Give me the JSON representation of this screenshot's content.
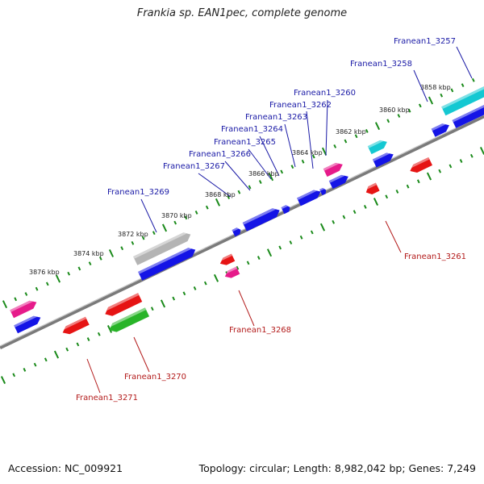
{
  "title": "Frankia sp. EAN1pec, complete genome",
  "footer": {
    "accession": "Accession: NC_009921",
    "summary": "Topology: circular; Length: 8,982,042 bp; Genes: 7,249"
  },
  "colors": {
    "backbone": "#808080",
    "ticks": "#1a8a1a",
    "forward_label": "#1a1aa6",
    "reverse_label": "#b31b1b",
    "blue": "#1414e6",
    "red": "#e61414",
    "magenta": "#e61a8a",
    "cyan": "#14c8d2",
    "grey": "#b4b4b4",
    "green": "#28b428"
  },
  "kbp_ticks": [
    {
      "label": "3858 kbp"
    },
    {
      "label": "3860 kbp"
    },
    {
      "label": "3862 kbp"
    },
    {
      "label": "3864 kbp"
    },
    {
      "label": "3866 kbp"
    },
    {
      "label": "3868 kbp"
    },
    {
      "label": "3870 kbp"
    },
    {
      "label": "3872 kbp"
    },
    {
      "label": "3874 kbp"
    },
    {
      "label": "3876 kbp"
    }
  ],
  "gene_labels": [
    {
      "text": "Franean1_3257",
      "strand": "forward"
    },
    {
      "text": "Franean1_3258",
      "strand": "forward"
    },
    {
      "text": "Franean1_3260",
      "strand": "forward"
    },
    {
      "text": "Franean1_3262",
      "strand": "forward"
    },
    {
      "text": "Franean1_3263",
      "strand": "forward"
    },
    {
      "text": "Franean1_3264",
      "strand": "forward"
    },
    {
      "text": "Franean1_3265",
      "strand": "forward"
    },
    {
      "text": "Franean1_3266",
      "strand": "forward"
    },
    {
      "text": "Franean1_3267",
      "strand": "forward"
    },
    {
      "text": "Franean1_3269",
      "strand": "forward"
    },
    {
      "text": "Franean1_3261",
      "strand": "reverse"
    },
    {
      "text": "Franean1_3268",
      "strand": "reverse"
    },
    {
      "text": "Franean1_3270",
      "strand": "reverse"
    },
    {
      "text": "Franean1_3271",
      "strand": "reverse"
    }
  ]
}
